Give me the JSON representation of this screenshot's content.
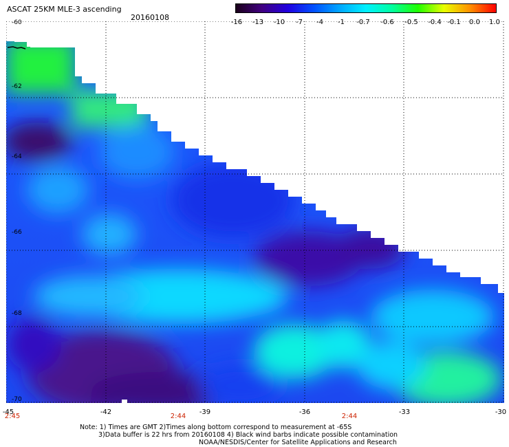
{
  "header": {
    "title": "ASCAT 25KM MLE-3 ascending",
    "date": "20160108"
  },
  "colorbar": {
    "tick_labels": [
      "-16",
      "-13",
      "-10",
      "-7",
      "-4",
      "-1",
      "-0.7",
      "-0.6",
      "-0.5",
      "-0.4",
      "-0.1",
      "0.0",
      "1.0"
    ],
    "colors": [
      "#300030",
      "#40008a",
      "#2000e0",
      "#0048ff",
      "#009cff",
      "#00e4ff",
      "#00ffd2",
      "#00ff70",
      "#10ff00",
      "#c8ff00",
      "#ffb000",
      "#ff5000",
      "#ff0000"
    ]
  },
  "map": {
    "lat_labels": [
      "-60",
      "-62",
      "-64",
      "-66",
      "-68",
      "-70"
    ],
    "lon_labels": [
      "-45",
      "-42",
      "-39",
      "-36",
      "-33",
      "-30"
    ],
    "lat_range": [
      -70,
      -60
    ],
    "lon_range": [
      -45,
      -30
    ],
    "time_labels": [
      "2:45",
      "2:44",
      "2:44"
    ],
    "grid": "dotted"
  },
  "notes": {
    "line1": "Note: 1) Times are GMT 2)Times along bottom correspond to measurement at -65S",
    "line2": "3)Data buffer is 22 hrs from 20160108 4) Black wind barbs indicate possible contamination",
    "line3": "NOAA/NESDIS/Center for Satellite Applications and Research"
  }
}
